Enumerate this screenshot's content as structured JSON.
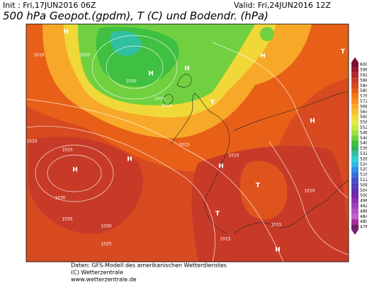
{
  "header": {
    "init": "Init : Fri,17JUN2016 06Z",
    "valid": "Valid: Fri,24JUN2016 12Z",
    "title": "500 hPa Geopot.(gpdm), T (C) und Bodendr. (hPa)"
  },
  "colorbar": {
    "levels": [
      600,
      596,
      592,
      588,
      584,
      580,
      576,
      572,
      568,
      564,
      560,
      556,
      552,
      548,
      544,
      540,
      536,
      532,
      528,
      524,
      520,
      516,
      512,
      508,
      504,
      500,
      496,
      492,
      488,
      484,
      480,
      476
    ],
    "colors": [
      "#7a1030",
      "#9a1a2e",
      "#b22a2a",
      "#c83a28",
      "#d84a20",
      "#e86018",
      "#f07818",
      "#f89020",
      "#f8a828",
      "#f8c030",
      "#f0d838",
      "#e8e840",
      "#c8e840",
      "#a0e040",
      "#70d040",
      "#40c040",
      "#30b060",
      "#30c0a0",
      "#30d0d0",
      "#30b8e8",
      "#3090e8",
      "#3070d8",
      "#4050c8",
      "#5040b8",
      "#6030b0",
      "#7828a8",
      "#8830b0",
      "#a040b8",
      "#b050c0",
      "#c060c8",
      "#a03098",
      "#702070"
    ]
  },
  "map": {
    "labels": [
      "H",
      "H",
      "H",
      "H",
      "H",
      "H",
      "H",
      "H",
      "H",
      "T",
      "T",
      "T",
      "T",
      "1010",
      "1005",
      "1000",
      "1005",
      "1010",
      "1015",
      "1020",
      "1025",
      "1030",
      "1035",
      "1030",
      "1025",
      "1015",
      "1010",
      "1015",
      "1015"
    ]
  },
  "footer": {
    "line1": "Daten: GFS-Modell des amerikanischen Wetterdienstes",
    "line2": "(C) Wetterzentrale",
    "line3": "www.wetterzentrale.de"
  }
}
